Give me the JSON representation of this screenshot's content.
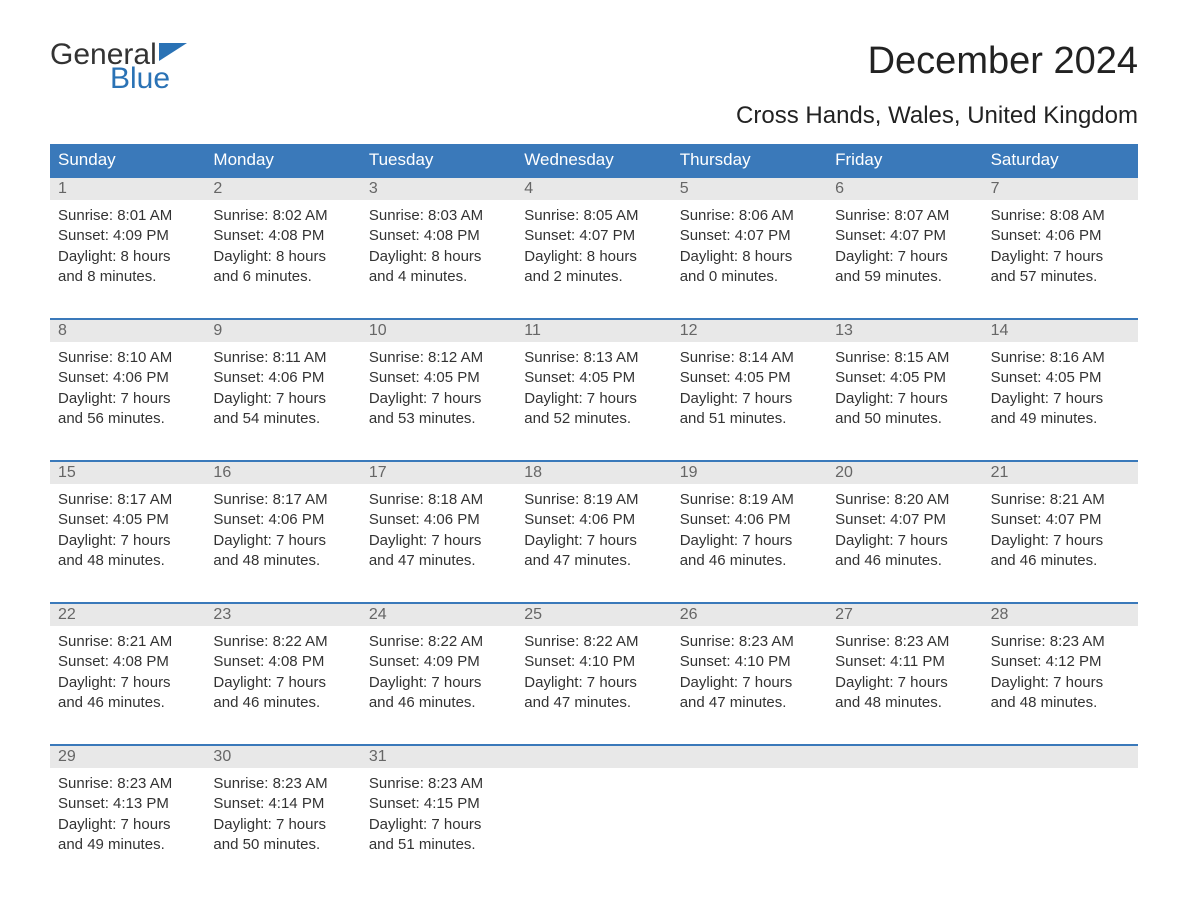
{
  "logo": {
    "text1": "General",
    "text2": "Blue"
  },
  "title": "December 2024",
  "subtitle": "Cross Hands, Wales, United Kingdom",
  "colors": {
    "header_bg": "#3a79ba",
    "header_text": "#ffffff",
    "daynum_bg": "#e8e8e8",
    "daynum_text": "#666666",
    "body_text": "#333333",
    "week_border": "#3a79ba",
    "logo_blue": "#2a72b5"
  },
  "weekdays": [
    "Sunday",
    "Monday",
    "Tuesday",
    "Wednesday",
    "Thursday",
    "Friday",
    "Saturday"
  ],
  "weeks": [
    [
      {
        "n": "1",
        "sr": "8:01 AM",
        "ss": "4:09 PM",
        "dl1": "Daylight: 8 hours",
        "dl2": "and 8 minutes."
      },
      {
        "n": "2",
        "sr": "8:02 AM",
        "ss": "4:08 PM",
        "dl1": "Daylight: 8 hours",
        "dl2": "and 6 minutes."
      },
      {
        "n": "3",
        "sr": "8:03 AM",
        "ss": "4:08 PM",
        "dl1": "Daylight: 8 hours",
        "dl2": "and 4 minutes."
      },
      {
        "n": "4",
        "sr": "8:05 AM",
        "ss": "4:07 PM",
        "dl1": "Daylight: 8 hours",
        "dl2": "and 2 minutes."
      },
      {
        "n": "5",
        "sr": "8:06 AM",
        "ss": "4:07 PM",
        "dl1": "Daylight: 8 hours",
        "dl2": "and 0 minutes."
      },
      {
        "n": "6",
        "sr": "8:07 AM",
        "ss": "4:07 PM",
        "dl1": "Daylight: 7 hours",
        "dl2": "and 59 minutes."
      },
      {
        "n": "7",
        "sr": "8:08 AM",
        "ss": "4:06 PM",
        "dl1": "Daylight: 7 hours",
        "dl2": "and 57 minutes."
      }
    ],
    [
      {
        "n": "8",
        "sr": "8:10 AM",
        "ss": "4:06 PM",
        "dl1": "Daylight: 7 hours",
        "dl2": "and 56 minutes."
      },
      {
        "n": "9",
        "sr": "8:11 AM",
        "ss": "4:06 PM",
        "dl1": "Daylight: 7 hours",
        "dl2": "and 54 minutes."
      },
      {
        "n": "10",
        "sr": "8:12 AM",
        "ss": "4:05 PM",
        "dl1": "Daylight: 7 hours",
        "dl2": "and 53 minutes."
      },
      {
        "n": "11",
        "sr": "8:13 AM",
        "ss": "4:05 PM",
        "dl1": "Daylight: 7 hours",
        "dl2": "and 52 minutes."
      },
      {
        "n": "12",
        "sr": "8:14 AM",
        "ss": "4:05 PM",
        "dl1": "Daylight: 7 hours",
        "dl2": "and 51 minutes."
      },
      {
        "n": "13",
        "sr": "8:15 AM",
        "ss": "4:05 PM",
        "dl1": "Daylight: 7 hours",
        "dl2": "and 50 minutes."
      },
      {
        "n": "14",
        "sr": "8:16 AM",
        "ss": "4:05 PM",
        "dl1": "Daylight: 7 hours",
        "dl2": "and 49 minutes."
      }
    ],
    [
      {
        "n": "15",
        "sr": "8:17 AM",
        "ss": "4:05 PM",
        "dl1": "Daylight: 7 hours",
        "dl2": "and 48 minutes."
      },
      {
        "n": "16",
        "sr": "8:17 AM",
        "ss": "4:06 PM",
        "dl1": "Daylight: 7 hours",
        "dl2": "and 48 minutes."
      },
      {
        "n": "17",
        "sr": "8:18 AM",
        "ss": "4:06 PM",
        "dl1": "Daylight: 7 hours",
        "dl2": "and 47 minutes."
      },
      {
        "n": "18",
        "sr": "8:19 AM",
        "ss": "4:06 PM",
        "dl1": "Daylight: 7 hours",
        "dl2": "and 47 minutes."
      },
      {
        "n": "19",
        "sr": "8:19 AM",
        "ss": "4:06 PM",
        "dl1": "Daylight: 7 hours",
        "dl2": "and 46 minutes."
      },
      {
        "n": "20",
        "sr": "8:20 AM",
        "ss": "4:07 PM",
        "dl1": "Daylight: 7 hours",
        "dl2": "and 46 minutes."
      },
      {
        "n": "21",
        "sr": "8:21 AM",
        "ss": "4:07 PM",
        "dl1": "Daylight: 7 hours",
        "dl2": "and 46 minutes."
      }
    ],
    [
      {
        "n": "22",
        "sr": "8:21 AM",
        "ss": "4:08 PM",
        "dl1": "Daylight: 7 hours",
        "dl2": "and 46 minutes."
      },
      {
        "n": "23",
        "sr": "8:22 AM",
        "ss": "4:08 PM",
        "dl1": "Daylight: 7 hours",
        "dl2": "and 46 minutes."
      },
      {
        "n": "24",
        "sr": "8:22 AM",
        "ss": "4:09 PM",
        "dl1": "Daylight: 7 hours",
        "dl2": "and 46 minutes."
      },
      {
        "n": "25",
        "sr": "8:22 AM",
        "ss": "4:10 PM",
        "dl1": "Daylight: 7 hours",
        "dl2": "and 47 minutes."
      },
      {
        "n": "26",
        "sr": "8:23 AM",
        "ss": "4:10 PM",
        "dl1": "Daylight: 7 hours",
        "dl2": "and 47 minutes."
      },
      {
        "n": "27",
        "sr": "8:23 AM",
        "ss": "4:11 PM",
        "dl1": "Daylight: 7 hours",
        "dl2": "and 48 minutes."
      },
      {
        "n": "28",
        "sr": "8:23 AM",
        "ss": "4:12 PM",
        "dl1": "Daylight: 7 hours",
        "dl2": "and 48 minutes."
      }
    ],
    [
      {
        "n": "29",
        "sr": "8:23 AM",
        "ss": "4:13 PM",
        "dl1": "Daylight: 7 hours",
        "dl2": "and 49 minutes."
      },
      {
        "n": "30",
        "sr": "8:23 AM",
        "ss": "4:14 PM",
        "dl1": "Daylight: 7 hours",
        "dl2": "and 50 minutes."
      },
      {
        "n": "31",
        "sr": "8:23 AM",
        "ss": "4:15 PM",
        "dl1": "Daylight: 7 hours",
        "dl2": "and 51 minutes."
      },
      null,
      null,
      null,
      null
    ]
  ]
}
